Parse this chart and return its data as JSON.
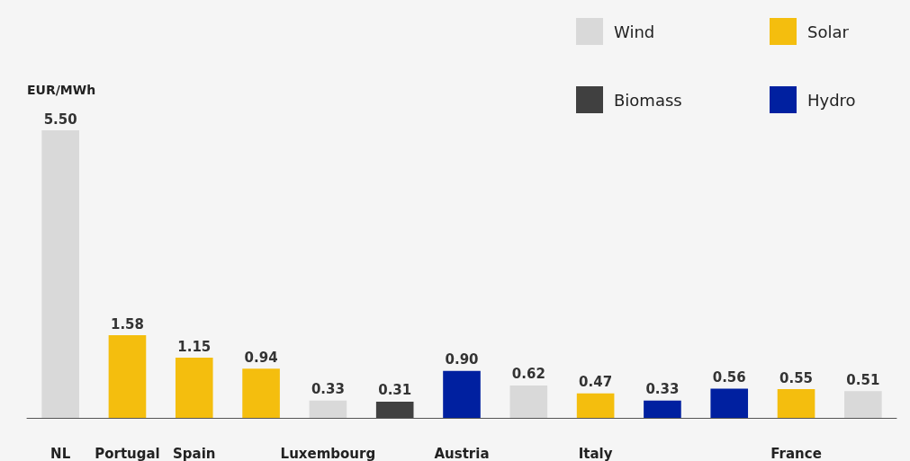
{
  "chart_data": {
    "type": "bar",
    "ylabel": "EUR/MWh",
    "stacked": true,
    "legend": "top right",
    "categories": [
      "NL",
      "Portugal",
      "Spain",
      null,
      "Luxembourg",
      null,
      "Austria",
      null,
      "Italy",
      null,
      null,
      "France",
      null
    ],
    "series": [
      {
        "name": "Wind",
        "color": "#d9d9d9",
        "values": [
          5.5,
          null,
          null,
          null,
          0.33,
          null,
          null,
          0.62,
          null,
          null,
          null,
          null,
          0.51
        ],
        "value_labels": [
          "5.50",
          null,
          null,
          null,
          "0.33",
          null,
          null,
          "0.62",
          null,
          null,
          null,
          null,
          "0.51"
        ]
      },
      {
        "name": "Solar",
        "color": "#f4be0e",
        "values": [
          null,
          1.58,
          1.15,
          0.94,
          null,
          null,
          null,
          null,
          0.47,
          null,
          null,
          0.55,
          null
        ],
        "value_labels": [
          null,
          "1.58",
          "1.15",
          "0.94",
          null,
          null,
          null,
          null,
          "0.47",
          null,
          null,
          "0.55",
          null
        ]
      },
      {
        "name": "Biomass",
        "color": "#404040",
        "values": [
          null,
          null,
          null,
          null,
          null,
          0.31,
          null,
          null,
          null,
          null,
          null,
          null,
          null
        ],
        "value_labels": [
          null,
          null,
          null,
          null,
          null,
          "0.31",
          null,
          null,
          null,
          null,
          null,
          null,
          null
        ]
      },
      {
        "name": "Hydro",
        "color": "#0020a0",
        "values": [
          null,
          null,
          null,
          null,
          null,
          null,
          0.9,
          null,
          null,
          0.33,
          0.56,
          null,
          null
        ],
        "value_labels": [
          null,
          null,
          null,
          null,
          null,
          null,
          "0.90",
          null,
          null,
          "0.33",
          "0.56",
          null,
          null
        ]
      }
    ]
  }
}
